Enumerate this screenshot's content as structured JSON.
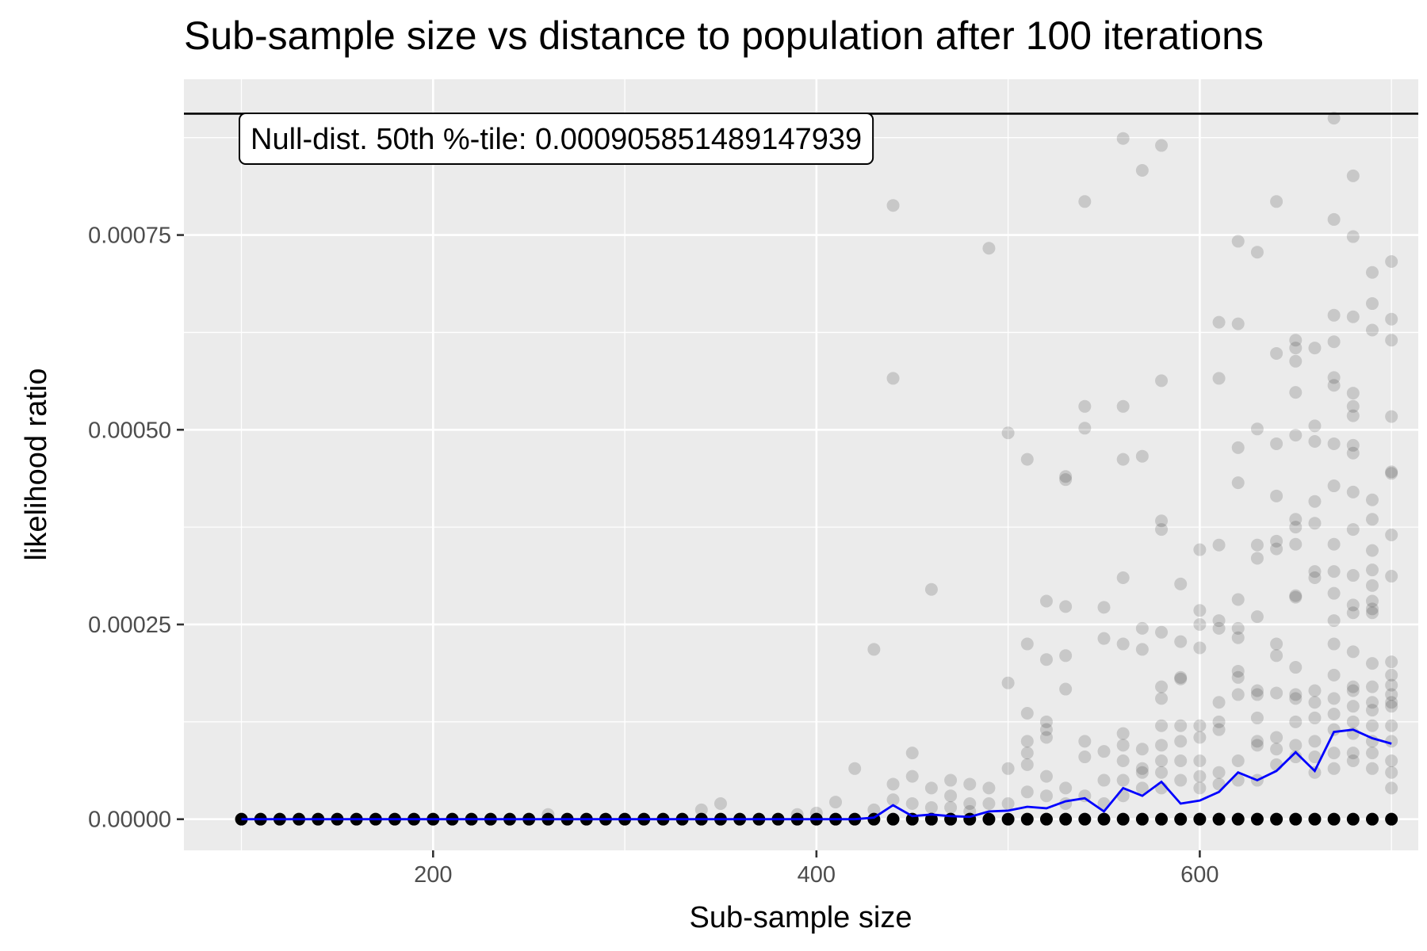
{
  "chart_data": {
    "type": "scatter",
    "title": "Sub-sample size vs distance to population after 100 iterations",
    "xlabel": "Sub-sample size",
    "ylabel": "likelihood ratio",
    "xlim": [
      70,
      714
    ],
    "ylim": [
      -4e-05,
      0.00095
    ],
    "x_ticks": [
      200,
      400,
      600
    ],
    "x_tick_labels": [
      "200",
      "400",
      "600"
    ],
    "y_ticks": [
      0,
      0.00025,
      0.0005,
      0.00075
    ],
    "y_tick_labels": [
      "0.00000",
      "0.00025",
      "0.00050",
      "0.00075"
    ],
    "grid": true,
    "point_color": "#000000",
    "point_opacity": 0.15,
    "mean_line_color": "#0000ff",
    "reference_line": {
      "y": 0.00090585,
      "label": "Null-dist. 50th %-tile: 0.000905851489147939"
    },
    "mean_line": {
      "x": [
        100,
        110,
        120,
        130,
        140,
        150,
        160,
        170,
        180,
        190,
        200,
        210,
        220,
        230,
        240,
        250,
        260,
        270,
        280,
        290,
        300,
        310,
        320,
        330,
        340,
        350,
        360,
        370,
        380,
        390,
        400,
        410,
        420,
        430,
        440,
        450,
        460,
        470,
        480,
        490,
        500,
        510,
        520,
        530,
        540,
        550,
        560,
        570,
        580,
        590,
        600,
        610,
        620,
        630,
        640,
        650,
        660,
        670,
        680,
        690,
        700
      ],
      "y": [
        0,
        0,
        0,
        0,
        0,
        0,
        0,
        0,
        0,
        0,
        0,
        0,
        0,
        0,
        0,
        0,
        0,
        0,
        0,
        0,
        0,
        0,
        0,
        0,
        0,
        0,
        0,
        0,
        0,
        0,
        0,
        0,
        0,
        2e-06,
        1.8e-05,
        4e-06,
        6e-06,
        4e-06,
        3e-06,
        1e-05,
        1.1e-05,
        1.6e-05,
        1.4e-05,
        2.3e-05,
        2.7e-05,
        1e-05,
        4e-05,
        3e-05,
        4.8e-05,
        2e-05,
        2.4e-05,
        3.5e-05,
        6e-05,
        5e-05,
        6.2e-05,
        8.6e-05,
        6.2e-05,
        0.000112,
        0.000115,
        0.000104,
        9.7e-05
      ]
    },
    "scatter_points": [
      [
        260,
        6e-06
      ],
      [
        340,
        1.2e-05
      ],
      [
        350,
        2e-05
      ],
      [
        390,
        6e-06
      ],
      [
        400,
        8e-06
      ],
      [
        410,
        2.2e-05
      ],
      [
        420,
        6.5e-05
      ],
      [
        430,
        0.000218
      ],
      [
        430,
        1.2e-05
      ],
      [
        440,
        0.000788
      ],
      [
        440,
        0.000566
      ],
      [
        440,
        4.5e-05
      ],
      [
        440,
        2.5e-05
      ],
      [
        450,
        8.5e-05
      ],
      [
        450,
        5.5e-05
      ],
      [
        450,
        2e-05
      ],
      [
        460,
        0.000295
      ],
      [
        460,
        4e-05
      ],
      [
        460,
        1.5e-05
      ],
      [
        470,
        5e-05
      ],
      [
        470,
        3e-05
      ],
      [
        470,
        1.5e-05
      ],
      [
        480,
        4.5e-05
      ],
      [
        480,
        2e-05
      ],
      [
        480,
        1e-05
      ],
      [
        490,
        0.000733
      ],
      [
        490,
        4e-05
      ],
      [
        490,
        2e-05
      ],
      [
        500,
        0.000496
      ],
      [
        500,
        0.000175
      ],
      [
        500,
        6.5e-05
      ],
      [
        500,
        2e-05
      ],
      [
        510,
        0.000462
      ],
      [
        510,
        0.000225
      ],
      [
        510,
        0.000136
      ],
      [
        510,
        0.0001
      ],
      [
        510,
        8.5e-05
      ],
      [
        510,
        7e-05
      ],
      [
        510,
        3.5e-05
      ],
      [
        520,
        0.00028
      ],
      [
        520,
        0.000205
      ],
      [
        520,
        0.000125
      ],
      [
        520,
        0.000115
      ],
      [
        520,
        0.000105
      ],
      [
        520,
        5.5e-05
      ],
      [
        520,
        3e-05
      ],
      [
        530,
        0.00044
      ],
      [
        530,
        0.000436
      ],
      [
        530,
        0.000273
      ],
      [
        530,
        0.00021
      ],
      [
        530,
        0.000167
      ],
      [
        530,
        4e-05
      ],
      [
        530,
        2e-05
      ],
      [
        540,
        0.000793
      ],
      [
        540,
        0.00053
      ],
      [
        540,
        0.000502
      ],
      [
        540,
        0.0001
      ],
      [
        540,
        8e-05
      ],
      [
        540,
        3e-05
      ],
      [
        550,
        0.000272
      ],
      [
        550,
        0.000232
      ],
      [
        550,
        8.7e-05
      ],
      [
        550,
        5e-05
      ],
      [
        550,
        2e-05
      ],
      [
        560,
        0.000874
      ],
      [
        560,
        0.00053
      ],
      [
        560,
        0.000462
      ],
      [
        560,
        0.00031
      ],
      [
        560,
        0.000225
      ],
      [
        560,
        0.00011
      ],
      [
        560,
        9.5e-05
      ],
      [
        560,
        7.5e-05
      ],
      [
        560,
        5e-05
      ],
      [
        560,
        3e-05
      ],
      [
        570,
        0.000833
      ],
      [
        570,
        0.000466
      ],
      [
        570,
        0.000245
      ],
      [
        570,
        0.000218
      ],
      [
        570,
        9e-05
      ],
      [
        570,
        6.5e-05
      ],
      [
        570,
        6e-05
      ],
      [
        570,
        4e-05
      ],
      [
        580,
        0.000865
      ],
      [
        580,
        0.000563
      ],
      [
        580,
        0.000383
      ],
      [
        580,
        0.000372
      ],
      [
        580,
        0.00024
      ],
      [
        580,
        0.00017
      ],
      [
        580,
        0.000155
      ],
      [
        580,
        0.00012
      ],
      [
        580,
        9.5e-05
      ],
      [
        580,
        7.5e-05
      ],
      [
        580,
        6e-05
      ],
      [
        580,
        4e-05
      ],
      [
        590,
        0.000302
      ],
      [
        590,
        0.000228
      ],
      [
        590,
        0.000182
      ],
      [
        590,
        0.00018
      ],
      [
        590,
        0.00012
      ],
      [
        590,
        0.0001
      ],
      [
        590,
        7.5e-05
      ],
      [
        590,
        5e-05
      ],
      [
        600,
        0.000346
      ],
      [
        600,
        0.000268
      ],
      [
        600,
        0.00025
      ],
      [
        600,
        0.00022
      ],
      [
        600,
        0.00012
      ],
      [
        600,
        0.000105
      ],
      [
        600,
        7.5e-05
      ],
      [
        600,
        5.5e-05
      ],
      [
        600,
        4e-05
      ],
      [
        610,
        0.000638
      ],
      [
        610,
        0.000566
      ],
      [
        610,
        0.000352
      ],
      [
        610,
        0.000255
      ],
      [
        610,
        0.000245
      ],
      [
        610,
        0.00015
      ],
      [
        610,
        0.000125
      ],
      [
        610,
        0.000115
      ],
      [
        610,
        6e-05
      ],
      [
        610,
        4.5e-05
      ],
      [
        620,
        0.000742
      ],
      [
        620,
        0.000636
      ],
      [
        620,
        0.000477
      ],
      [
        620,
        0.000432
      ],
      [
        620,
        0.000282
      ],
      [
        620,
        0.000245
      ],
      [
        620,
        0.000233
      ],
      [
        620,
        0.00019
      ],
      [
        620,
        0.000182
      ],
      [
        620,
        0.00016
      ],
      [
        620,
        7.5e-05
      ],
      [
        620,
        5e-05
      ],
      [
        630,
        0.000728
      ],
      [
        630,
        0.000501
      ],
      [
        630,
        0.000352
      ],
      [
        630,
        0.000335
      ],
      [
        630,
        0.00026
      ],
      [
        630,
        0.000165
      ],
      [
        630,
        0.00016
      ],
      [
        630,
        0.00013
      ],
      [
        630,
        0.0001
      ],
      [
        630,
        9.5e-05
      ],
      [
        630,
        5e-05
      ],
      [
        640,
        0.000793
      ],
      [
        640,
        0.000598
      ],
      [
        640,
        0.000482
      ],
      [
        640,
        0.000415
      ],
      [
        640,
        0.000357
      ],
      [
        640,
        0.000347
      ],
      [
        640,
        0.000225
      ],
      [
        640,
        0.00021
      ],
      [
        640,
        0.000162
      ],
      [
        640,
        0.000105
      ],
      [
        640,
        9e-05
      ],
      [
        640,
        7e-05
      ],
      [
        650,
        0.000615
      ],
      [
        650,
        0.000605
      ],
      [
        650,
        0.000588
      ],
      [
        650,
        0.000548
      ],
      [
        650,
        0.000493
      ],
      [
        650,
        0.000385
      ],
      [
        650,
        0.000375
      ],
      [
        650,
        0.000353
      ],
      [
        650,
        0.000287
      ],
      [
        650,
        0.000285
      ],
      [
        650,
        0.000195
      ],
      [
        650,
        0.00016
      ],
      [
        650,
        0.000155
      ],
      [
        650,
        0.000125
      ],
      [
        650,
        9.5e-05
      ],
      [
        650,
        8e-05
      ],
      [
        660,
        0.000605
      ],
      [
        660,
        0.000505
      ],
      [
        660,
        0.000485
      ],
      [
        660,
        0.000408
      ],
      [
        660,
        0.00038
      ],
      [
        660,
        0.000318
      ],
      [
        660,
        0.00031
      ],
      [
        660,
        0.000165
      ],
      [
        660,
        0.00015
      ],
      [
        660,
        0.00013
      ],
      [
        660,
        0.0001
      ],
      [
        660,
        8e-05
      ],
      [
        660,
        6e-05
      ],
      [
        670,
        0.0009
      ],
      [
        670,
        0.00077
      ],
      [
        670,
        0.000647
      ],
      [
        670,
        0.000613
      ],
      [
        670,
        0.000567
      ],
      [
        670,
        0.000557
      ],
      [
        670,
        0.000482
      ],
      [
        670,
        0.000428
      ],
      [
        670,
        0.000353
      ],
      [
        670,
        0.000318
      ],
      [
        670,
        0.00029
      ],
      [
        670,
        0.000255
      ],
      [
        670,
        0.000225
      ],
      [
        670,
        0.000185
      ],
      [
        670,
        0.000155
      ],
      [
        670,
        0.000135
      ],
      [
        670,
        0.000115
      ],
      [
        670,
        8.5e-05
      ],
      [
        670,
        6.5e-05
      ],
      [
        680,
        0.000826
      ],
      [
        680,
        0.000748
      ],
      [
        680,
        0.000645
      ],
      [
        680,
        0.000547
      ],
      [
        680,
        0.00053
      ],
      [
        680,
        0.000518
      ],
      [
        680,
        0.00048
      ],
      [
        680,
        0.00047
      ],
      [
        680,
        0.00042
      ],
      [
        680,
        0.000372
      ],
      [
        680,
        0.000313
      ],
      [
        680,
        0.000275
      ],
      [
        680,
        0.000265
      ],
      [
        680,
        0.000215
      ],
      [
        680,
        0.00017
      ],
      [
        680,
        0.000165
      ],
      [
        680,
        0.000145
      ],
      [
        680,
        0.000125
      ],
      [
        680,
        0.00011
      ],
      [
        680,
        8.5e-05
      ],
      [
        680,
        7.5e-05
      ],
      [
        690,
        0.000702
      ],
      [
        690,
        0.000662
      ],
      [
        690,
        0.000628
      ],
      [
        690,
        0.00041
      ],
      [
        690,
        0.000385
      ],
      [
        690,
        0.000345
      ],
      [
        690,
        0.00032
      ],
      [
        690,
        0.0003
      ],
      [
        690,
        0.00028
      ],
      [
        690,
        0.00027
      ],
      [
        690,
        0.000265
      ],
      [
        690,
        0.0002
      ],
      [
        690,
        0.00017
      ],
      [
        690,
        0.00015
      ],
      [
        690,
        0.00014
      ],
      [
        690,
        0.00012
      ],
      [
        690,
        0.0001
      ],
      [
        690,
        8.5e-05
      ],
      [
        690,
        6.5e-05
      ],
      [
        700,
        0.000716
      ],
      [
        700,
        0.000642
      ],
      [
        700,
        0.000615
      ],
      [
        700,
        0.000517
      ],
      [
        700,
        0.000446
      ],
      [
        700,
        0.000444
      ],
      [
        700,
        0.000365
      ],
      [
        700,
        0.000312
      ],
      [
        700,
        0.000202
      ],
      [
        700,
        0.000185
      ],
      [
        700,
        0.000172
      ],
      [
        700,
        0.00016
      ],
      [
        700,
        0.00015
      ],
      [
        700,
        0.000145
      ],
      [
        700,
        0.00012
      ],
      [
        700,
        0.0001
      ],
      [
        700,
        7.5e-05
      ],
      [
        700,
        6e-05
      ],
      [
        700,
        4e-05
      ]
    ]
  }
}
